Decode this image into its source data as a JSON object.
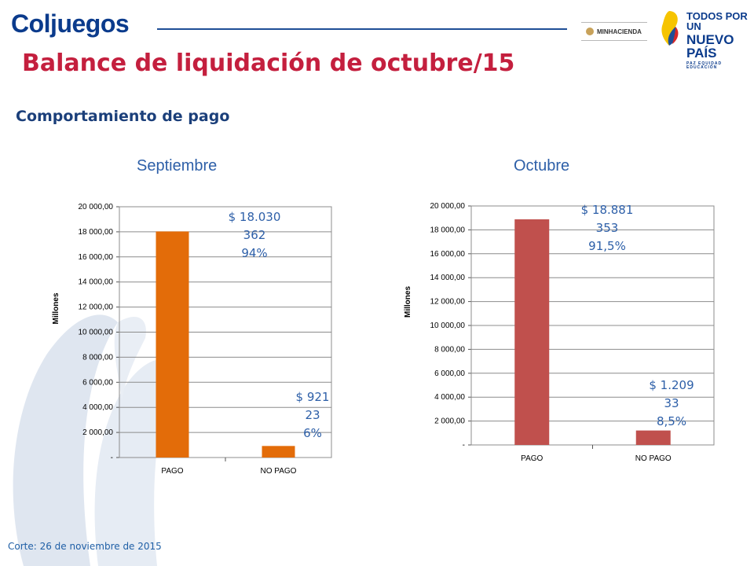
{
  "header": {
    "logo_text": "Coljuegos",
    "ministry_label": "MINHACIENDA",
    "brand_line1": "TODOS POR UN",
    "brand_line2": "NUEVO PAÍS",
    "brand_line3": "PAZ EQUIDAD EDUCACIÓN"
  },
  "title": "Balance de liquidación de octubre/15",
  "subtitle": "Comportamiento de pago",
  "footer": "Corte: 26 de noviembre de 2015",
  "colors": {
    "title": "#c41f3e",
    "subtitle": "#1b3f7a",
    "caption": "#2d5fa8",
    "annotation": "#2d5fa8",
    "bar_septiembre": "#e36c09",
    "bar_octubre": "#c0504d"
  },
  "chart_data": [
    {
      "type": "bar",
      "caption": "Septiembre",
      "ylabel": "Millones",
      "categories": [
        "PAGO",
        "NO PAGO"
      ],
      "values": [
        18030,
        921
      ],
      "ylim": [
        0,
        20000
      ],
      "ytick_values": [
        0,
        2000,
        4000,
        6000,
        8000,
        10000,
        12000,
        14000,
        16000,
        18000,
        20000
      ],
      "ytick_labels": [
        "-",
        "2 000,00",
        "4 000,00",
        "6 000,00",
        "8 000,00",
        "10 000,00",
        "12 000,00",
        "14 000,00",
        "16 000,00",
        "18 000,00",
        "20 000,00"
      ],
      "grid": true,
      "legend": "none",
      "annotations": [
        [
          "$ 18.030",
          "362",
          "94%"
        ],
        [
          "$ 921",
          "23",
          "6%"
        ]
      ]
    },
    {
      "type": "bar",
      "caption": "Octubre",
      "ylabel": "Millones",
      "categories": [
        "PAGO",
        "NO PAGO"
      ],
      "values": [
        18881,
        1209
      ],
      "ylim": [
        0,
        20000
      ],
      "ytick_values": [
        0,
        2000,
        4000,
        6000,
        8000,
        10000,
        12000,
        14000,
        16000,
        18000,
        20000
      ],
      "ytick_labels": [
        "-",
        "2 000,00",
        "4 000,00",
        "6 000,00",
        "8 000,00",
        "10 000,00",
        "12 000,00",
        "14 000,00",
        "16 000,00",
        "18 000,00",
        "20 000,00"
      ],
      "grid": true,
      "legend": "none",
      "annotations": [
        [
          "$ 18.881",
          "353",
          "91,5%"
        ],
        [
          "$ 1.209",
          "33",
          "8,5%"
        ]
      ]
    }
  ]
}
